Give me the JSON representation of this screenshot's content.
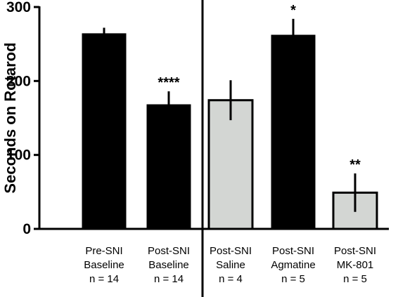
{
  "chart_data": {
    "type": "bar",
    "ylabel": "Seconds on Rotarod",
    "ylim": [
      0,
      300
    ],
    "yticks": [
      0,
      100,
      200,
      300
    ],
    "categories": [
      {
        "line1": "Pre-SNI",
        "line2": "Baseline",
        "line3": "n = 14"
      },
      {
        "line1": "Post-SNI",
        "line2": "Baseline",
        "line3": "n = 14"
      },
      {
        "line1": "Post-SNI",
        "line2": "Saline",
        "line3": "n = 4"
      },
      {
        "line1": "Post-SNI",
        "line2": "Agmatine",
        "line3": "n = 5"
      },
      {
        "line1": "Post-SNI",
        "line2": "MK-801",
        "line3": "n = 5"
      }
    ],
    "values": [
      264,
      168,
      174,
      262,
      49
    ],
    "errors": [
      8,
      18,
      27,
      22,
      26
    ],
    "significance": [
      "",
      "****",
      "",
      "*",
      "**"
    ],
    "colors": [
      "#000000",
      "#000000",
      "#d3d6d3",
      "#000000",
      "#d3d6d3"
    ],
    "grid": false,
    "separator_after_category": 2
  }
}
